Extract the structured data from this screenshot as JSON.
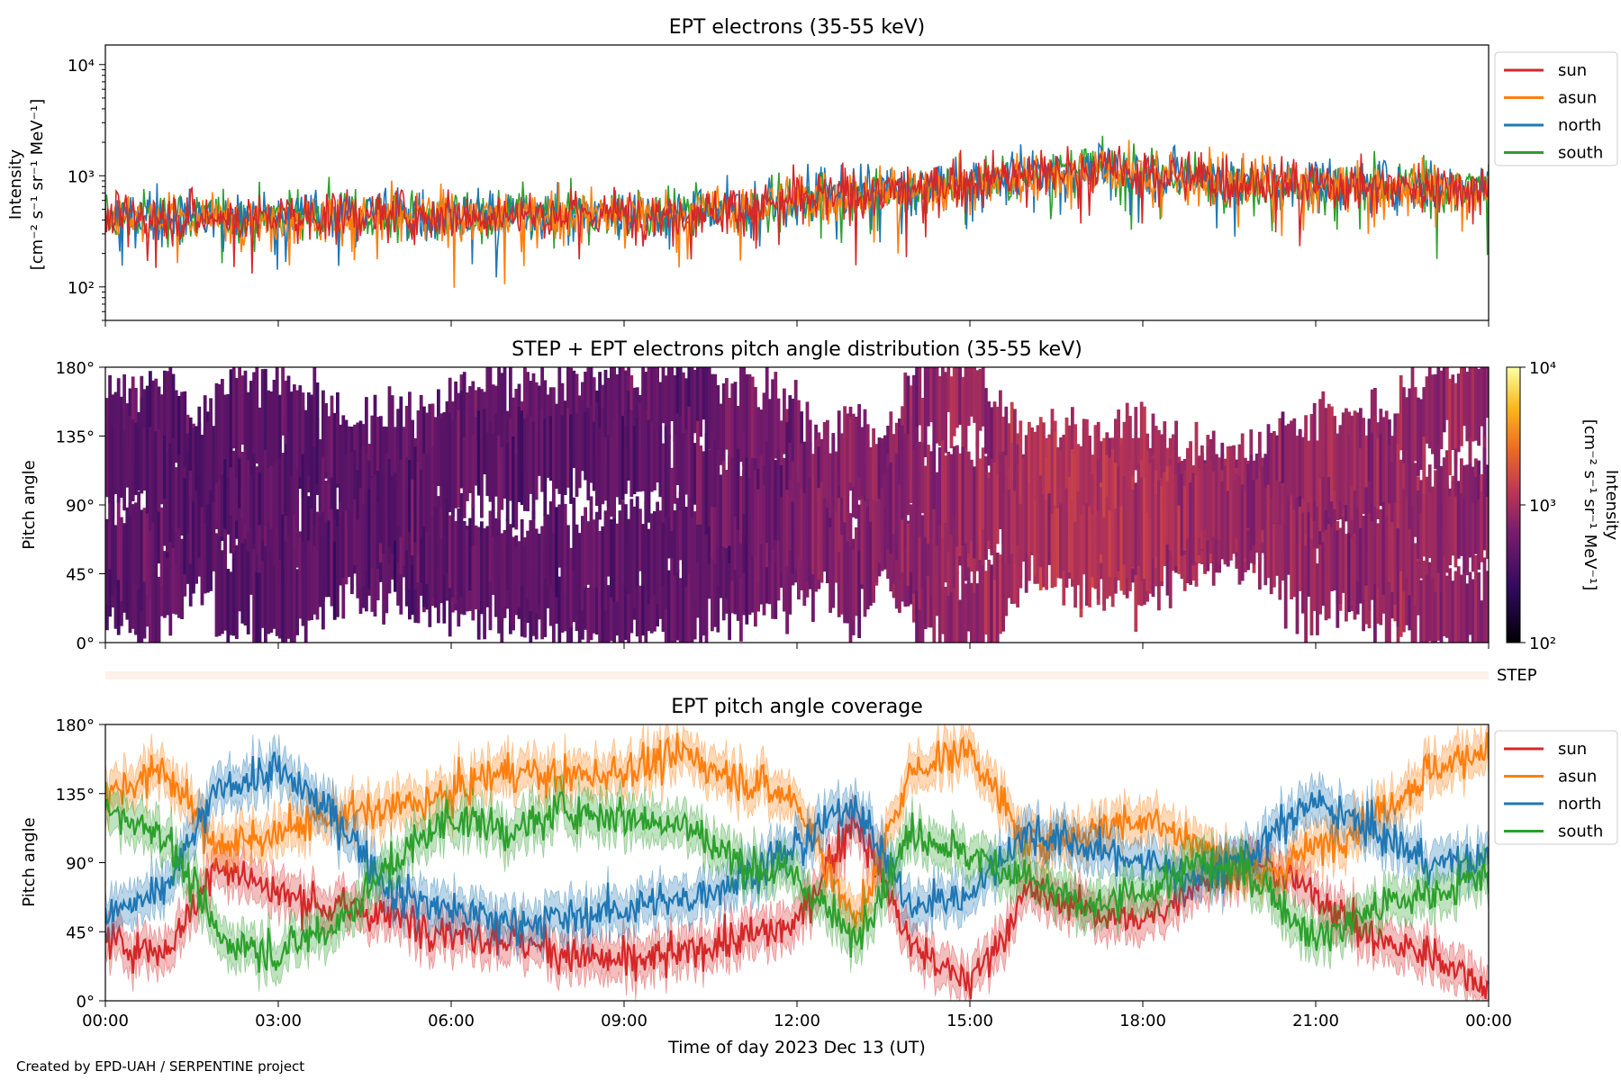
{
  "footer": "Created by EPD-UAH / SERPENTINE project",
  "colors": {
    "sun": "#d62728",
    "asun": "#ff7f0e",
    "north": "#1f77b4",
    "south": "#2ca02c",
    "step_band": "#fdf1ea"
  },
  "chart_data": [
    {
      "type": "line",
      "title": "EPT electrons (35-55 keV)",
      "ylabel": "Intensity",
      "yunits": "[cm⁻² s⁻¹ sr⁻¹ MeV⁻¹]",
      "yscale": "log",
      "ylim": [
        50,
        15000
      ],
      "yticks": [
        {
          "value": 100,
          "label": "10²"
        },
        {
          "value": 1000,
          "label": "10³"
        },
        {
          "value": 10000,
          "label": "10⁴"
        }
      ],
      "xlim_hours": [
        0,
        24
      ],
      "legend": {
        "placement": "outside-right-top",
        "entries": [
          "sun",
          "asun",
          "north",
          "south"
        ]
      },
      "series": [
        {
          "name": "sun",
          "x_hours": [
            0,
            1,
            2,
            3,
            4,
            5,
            6,
            7,
            8,
            9,
            10,
            11,
            12,
            13,
            14,
            15,
            16,
            17,
            18,
            19,
            20,
            21,
            22,
            23,
            24
          ],
          "values": [
            430,
            430,
            420,
            430,
            440,
            450,
            450,
            440,
            450,
            460,
            470,
            520,
            620,
            700,
            760,
            880,
            1050,
            1150,
            1080,
            950,
            880,
            830,
            820,
            810,
            800
          ]
        },
        {
          "name": "asun",
          "x_hours": [
            0,
            1,
            2,
            3,
            4,
            5,
            6,
            7,
            8,
            9,
            10,
            11,
            12,
            13,
            14,
            15,
            16,
            17,
            18,
            19,
            20,
            21,
            22,
            23,
            24
          ],
          "values": [
            410,
            420,
            410,
            420,
            430,
            440,
            440,
            430,
            440,
            450,
            460,
            500,
            600,
            680,
            740,
            860,
            1020,
            1120,
            1060,
            930,
            860,
            810,
            800,
            790,
            780
          ]
        },
        {
          "name": "north",
          "x_hours": [
            0,
            1,
            2,
            3,
            4,
            5,
            6,
            7,
            8,
            9,
            10,
            11,
            12,
            13,
            14,
            15,
            16,
            17,
            18,
            19,
            20,
            21,
            22,
            23,
            24
          ],
          "values": [
            440,
            430,
            420,
            440,
            450,
            460,
            450,
            440,
            460,
            460,
            480,
            530,
            630,
            710,
            770,
            890,
            1060,
            1160,
            1090,
            960,
            890,
            840,
            830,
            820,
            810
          ]
        },
        {
          "name": "south",
          "x_hours": [
            0,
            1,
            2,
            3,
            4,
            5,
            6,
            7,
            8,
            9,
            10,
            11,
            12,
            13,
            14,
            15,
            16,
            17,
            18,
            19,
            20,
            21,
            22,
            23,
            24
          ],
          "values": [
            420,
            440,
            430,
            430,
            450,
            440,
            460,
            450,
            450,
            470,
            470,
            510,
            610,
            690,
            750,
            870,
            1040,
            1140,
            1070,
            940,
            870,
            820,
            810,
            800,
            790
          ]
        }
      ]
    },
    {
      "type": "heatmap",
      "title": "STEP + EPT electrons pitch angle distribution (35-55 keV)",
      "ylabel": "Pitch angle",
      "yticks": [
        "0°",
        "45°",
        "90°",
        "135°",
        "180°"
      ],
      "ylim": [
        0,
        180
      ],
      "xlim_hours": [
        0,
        24
      ],
      "colorbar": {
        "label": "Intensity",
        "units": "[cm⁻² s⁻¹ sr⁻¹ MeV⁻¹]",
        "scale": "log",
        "range": [
          100,
          10000
        ],
        "tick_labels": [
          "10²",
          "10³",
          "10⁴"
        ]
      },
      "step_label": "STEP"
    },
    {
      "type": "line",
      "title": "EPT pitch angle coverage",
      "ylabel": "Pitch angle",
      "yticks": [
        "0°",
        "45°",
        "90°",
        "135°",
        "180°"
      ],
      "ylim": [
        0,
        180
      ],
      "xlabel": "Time of day 2023 Dec 13 (UT)",
      "xticks": [
        "00:00",
        "03:00",
        "06:00",
        "09:00",
        "12:00",
        "15:00",
        "18:00",
        "21:00",
        "00:00"
      ],
      "legend": {
        "placement": "outside-right-top",
        "entries": [
          "sun",
          "asun",
          "north",
          "south"
        ]
      },
      "series": [
        {
          "name": "sun",
          "x_hours": [
            0,
            1,
            2,
            3,
            4,
            5,
            6,
            7,
            8,
            9,
            10,
            11,
            12,
            13,
            14,
            15,
            16,
            17,
            18,
            19,
            20,
            21,
            22,
            23,
            24
          ],
          "values": [
            40,
            30,
            90,
            70,
            60,
            55,
            45,
            40,
            30,
            25,
            30,
            40,
            50,
            120,
            35,
            10,
            70,
            60,
            50,
            80,
            90,
            70,
            40,
            30,
            10
          ]
        },
        {
          "name": "asun",
          "x_hours": [
            0,
            1,
            2,
            3,
            4,
            5,
            6,
            7,
            8,
            9,
            10,
            11,
            12,
            13,
            14,
            15,
            16,
            17,
            18,
            19,
            20,
            21,
            22,
            23,
            24
          ],
          "values": [
            135,
            150,
            100,
            110,
            120,
            125,
            135,
            150,
            145,
            150,
            160,
            145,
            130,
            50,
            150,
            165,
            100,
            110,
            120,
            100,
            80,
            100,
            120,
            150,
            165
          ]
        },
        {
          "name": "north",
          "x_hours": [
            0,
            1,
            2,
            3,
            4,
            5,
            6,
            7,
            8,
            9,
            10,
            11,
            12,
            13,
            14,
            15,
            16,
            17,
            18,
            19,
            20,
            21,
            22,
            23,
            24
          ],
          "values": [
            55,
            70,
            140,
            150,
            120,
            70,
            60,
            50,
            55,
            60,
            65,
            80,
            100,
            130,
            60,
            70,
            110,
            100,
            90,
            80,
            100,
            130,
            110,
            90,
            90
          ]
        },
        {
          "name": "south",
          "x_hours": [
            0,
            1,
            2,
            3,
            4,
            5,
            6,
            7,
            8,
            9,
            10,
            11,
            12,
            13,
            14,
            15,
            16,
            17,
            18,
            19,
            20,
            21,
            22,
            23,
            24
          ],
          "values": [
            125,
            110,
            40,
            30,
            50,
            90,
            120,
            110,
            125,
            120,
            115,
            90,
            80,
            40,
            110,
            95,
            80,
            60,
            70,
            90,
            80,
            40,
            60,
            70,
            80
          ]
        }
      ]
    }
  ]
}
